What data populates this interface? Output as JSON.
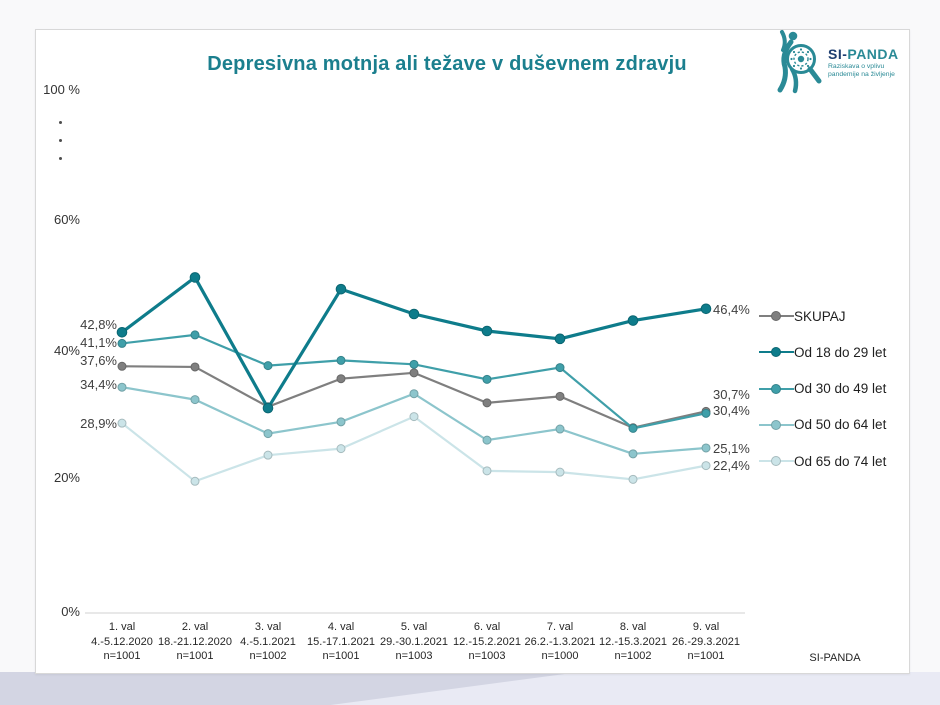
{
  "page": {
    "title": "Depresivna motnja ali težave v duševnem zdravju",
    "footer": "SI-PANDA"
  },
  "logo": {
    "brand_prefix": "SI-",
    "brand_suffix": "PANDA",
    "tagline_line1": "Raziskava o vplivu",
    "tagline_line2": "pandemije na življenje"
  },
  "colors": {
    "title_teal": "#1b7f8e",
    "skupaj_gray": "#7f7f7f",
    "age_18_29": "#0e7c8b",
    "age_30_49": "#3f9fa9",
    "age_50_64": "#8cc5cc",
    "age_65_74": "#cbe4e8",
    "axis_line": "#d9d9d9",
    "background_lavender": "#e9eaf4",
    "background_diagonal": "#d3d5e3"
  },
  "chart_data": {
    "type": "line",
    "title": "Depresivna motnja ali težave v duševnem zdravju",
    "unit": "%",
    "y_axis": {
      "ticks": [
        "100 %",
        "60%",
        "40%",
        "20%",
        "0%"
      ],
      "broken_axis": true,
      "visible_range": [
        0,
        65
      ],
      "grid": false
    },
    "legend_position": "right",
    "categories": [
      {
        "wave": "1. val",
        "date": "4.-5.12.2020",
        "n": "n=1001"
      },
      {
        "wave": "2. val",
        "date": "18.-21.12.2020",
        "n": "n=1001"
      },
      {
        "wave": "3. val",
        "date": "4.-5.1.2021",
        "n": "n=1002"
      },
      {
        "wave": "4. val",
        "date": "15.-17.1.2021",
        "n": "n=1001"
      },
      {
        "wave": "5. val",
        "date": "29.-30.1.2021",
        "n": "n=1003"
      },
      {
        "wave": "6. val",
        "date": "12.-15.2.2021",
        "n": "n=1003"
      },
      {
        "wave": "7. val",
        "date": "26.2.-1.3.2021",
        "n": "n=1000"
      },
      {
        "wave": "8. val",
        "date": "12.-15.3.2021",
        "n": "n=1002"
      },
      {
        "wave": "9. val",
        "date": "26.-29.3.2021",
        "n": "n=1001"
      }
    ],
    "series": [
      {
        "name": "SKUPAJ",
        "color": "#7f7f7f",
        "values": [
          37.6,
          37.5,
          31.4,
          35.7,
          36.6,
          32.0,
          33.0,
          28.2,
          30.7
        ],
        "first_label": "37,6%",
        "last_label": "30,7%"
      },
      {
        "name": "Od 18 do 29 let",
        "color": "#0e7c8b",
        "values": [
          42.8,
          51.2,
          31.2,
          49.4,
          45.6,
          43.0,
          41.8,
          44.6,
          46.4
        ],
        "first_label": "42,8%",
        "last_label": "46,4%"
      },
      {
        "name": "Od 30 do 49 let",
        "color": "#3f9fa9",
        "values": [
          41.1,
          42.4,
          37.7,
          38.5,
          37.9,
          35.6,
          37.4,
          28.1,
          30.4
        ],
        "first_label": "41,1%",
        "last_label": "30,4%"
      },
      {
        "name": "Od 50 do 64 let",
        "color": "#8cc5cc",
        "values": [
          34.4,
          32.5,
          27.3,
          29.1,
          33.4,
          26.3,
          28.0,
          24.2,
          25.1
        ],
        "first_label": "34,4%",
        "last_label": "25,1%"
      },
      {
        "name": "Od 65 do 74 let",
        "color": "#cbe4e8",
        "values": [
          28.9,
          20.0,
          24.0,
          25.0,
          29.9,
          21.6,
          21.4,
          20.3,
          22.4
        ],
        "first_label": "28,9%",
        "last_label": "22,4%"
      }
    ]
  }
}
